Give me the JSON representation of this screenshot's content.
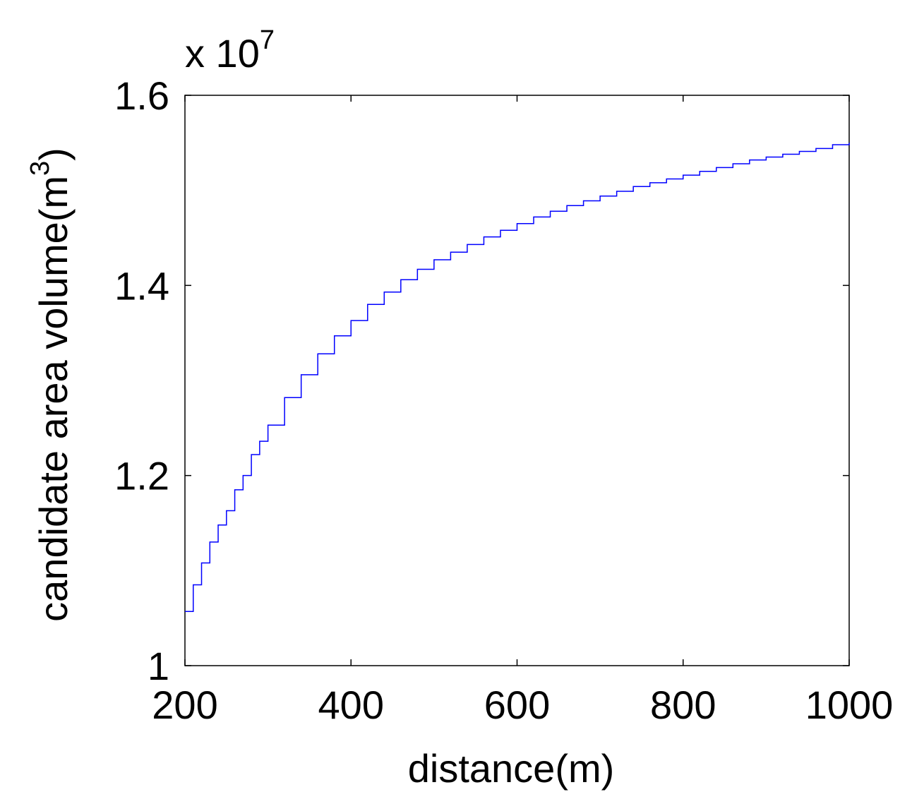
{
  "chart_data": {
    "type": "line",
    "xlabel": "distance(m)",
    "ylabel": "candidate area volume(m",
    "ylabel_superscript": "3",
    "ylabel_suffix": ")",
    "multiplier": {
      "base": "x 10",
      "exponent": "7"
    },
    "xlim": [
      200,
      1000
    ],
    "ylim": [
      1.0,
      1.6
    ],
    "xticks": [
      200,
      400,
      600,
      800,
      1000
    ],
    "xtick_labels": [
      "200",
      "400",
      "600",
      "800",
      "1000"
    ],
    "yticks": [
      1.0,
      1.2,
      1.4,
      1.6
    ],
    "ytick_labels": [
      "1",
      "1.2",
      "1.4",
      "1.6"
    ],
    "grid": false,
    "series": [
      {
        "color": "#0000ff",
        "step": true,
        "x": [
          200,
          210,
          220,
          230,
          240,
          250,
          260,
          270,
          280,
          290,
          300,
          320,
          340,
          360,
          380,
          400,
          420,
          440,
          460,
          480,
          500,
          520,
          540,
          560,
          580,
          600,
          620,
          640,
          660,
          680,
          700,
          720,
          740,
          760,
          780,
          800,
          820,
          840,
          860,
          880,
          900,
          920,
          940,
          960,
          980,
          1000
        ],
        "y": [
          1.057,
          1.085,
          1.108,
          1.13,
          1.148,
          1.163,
          1.185,
          1.2,
          1.222,
          1.236,
          1.253,
          1.282,
          1.306,
          1.328,
          1.347,
          1.363,
          1.38,
          1.393,
          1.406,
          1.417,
          1.427,
          1.435,
          1.443,
          1.451,
          1.458,
          1.465,
          1.472,
          1.478,
          1.484,
          1.489,
          1.494,
          1.499,
          1.504,
          1.508,
          1.512,
          1.516,
          1.52,
          1.524,
          1.528,
          1.532,
          1.535,
          1.538,
          1.541,
          1.544,
          1.548,
          1.55
        ]
      }
    ]
  }
}
